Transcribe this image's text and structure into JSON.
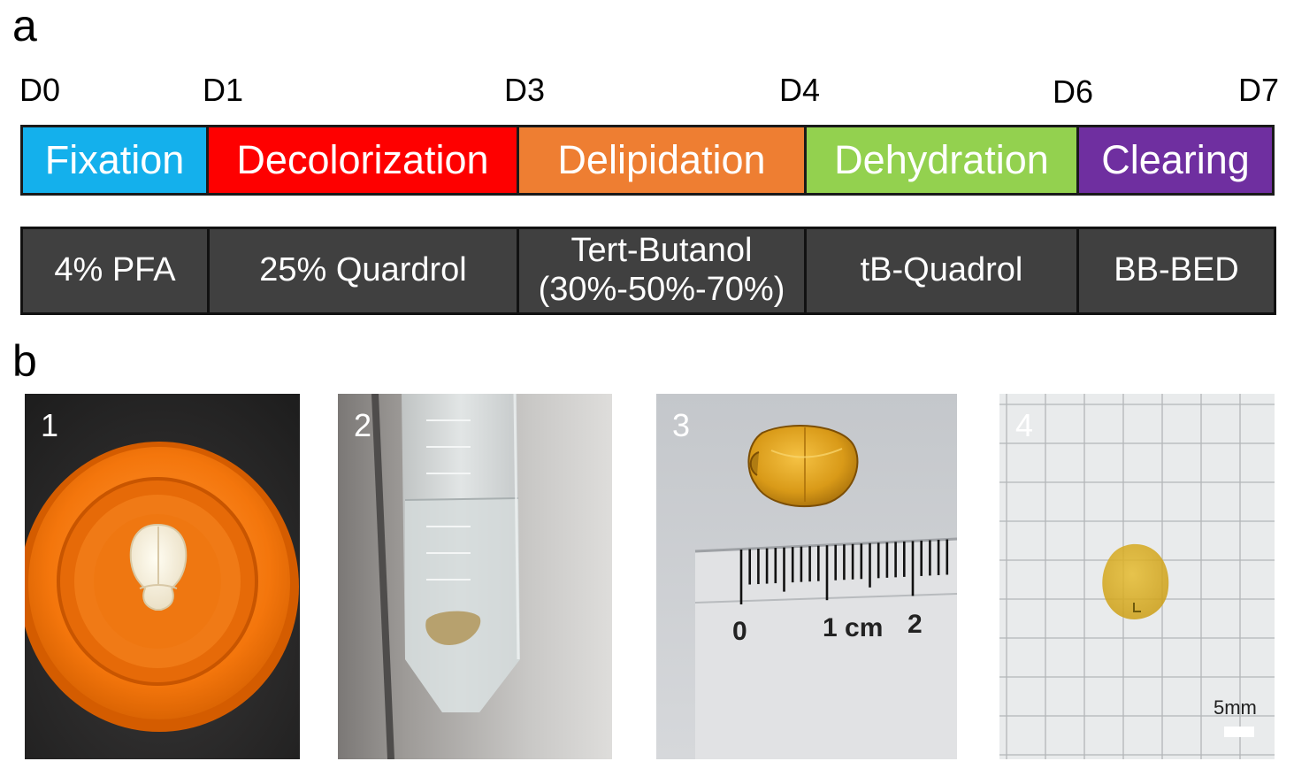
{
  "panel_a": {
    "letter": "a",
    "days": [
      "D0",
      "D1",
      "D3",
      "D4",
      "D6",
      "D7"
    ],
    "stages": [
      {
        "label": "Fixation",
        "color": "#14b0ec"
      },
      {
        "label": "Decolorization",
        "color": "#fe0000"
      },
      {
        "label": "Delipidation",
        "color": "#ee7e32"
      },
      {
        "label": "Dehydration",
        "color": "#93d14f"
      },
      {
        "label": "Clearing",
        "color": "#6f2fa0"
      }
    ],
    "reagents": [
      {
        "line1": "4% PFA",
        "line2": ""
      },
      {
        "line1": "25% Quardrol",
        "line2": ""
      },
      {
        "line1": "Tert-Butanol",
        "line2": "(30%-50%-70%)"
      },
      {
        "line1": "tB-Quadrol",
        "line2": ""
      },
      {
        "line1": "BB-BED",
        "line2": ""
      }
    ]
  },
  "panel_b": {
    "letter": "b",
    "photos": [
      {
        "number": "1"
      },
      {
        "number": "2"
      },
      {
        "number": "3",
        "ruler_labels": [
          "0",
          "1 cm",
          "2"
        ]
      },
      {
        "number": "4",
        "scale_bar_label": "5mm"
      }
    ]
  }
}
